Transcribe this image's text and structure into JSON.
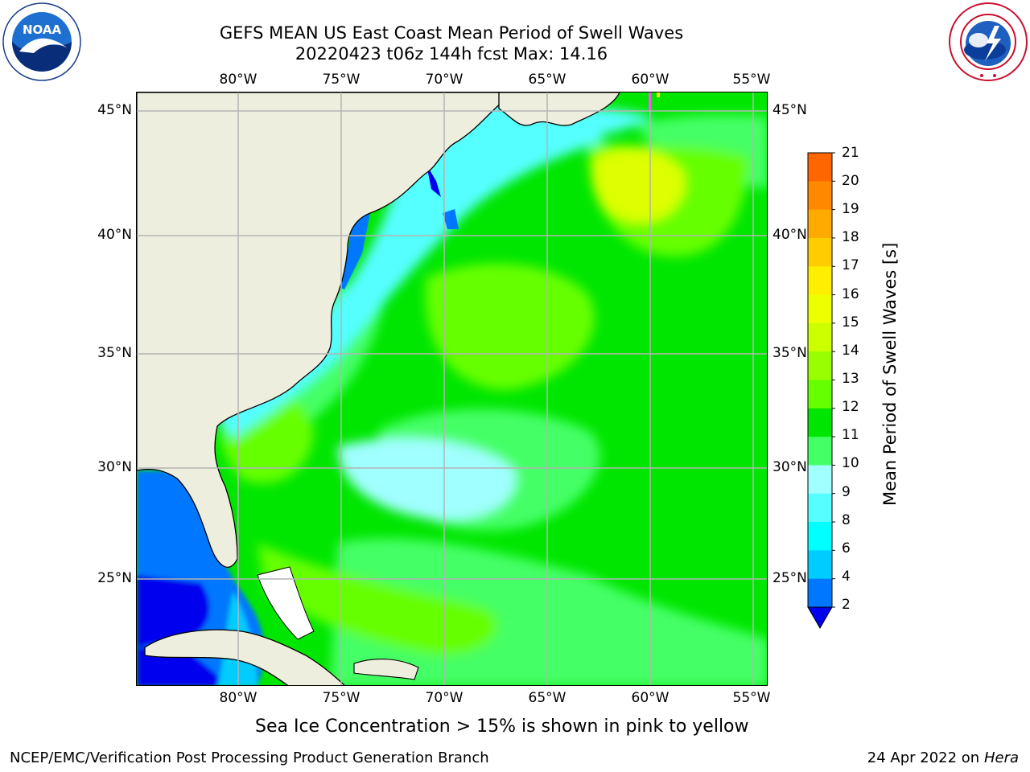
{
  "header": {
    "title_line1": "GEFS MEAN US East Coast Mean Period of Swell Waves",
    "title_line2": "20220423 t06z 144h fcst   Max: 14.16"
  },
  "logos": {
    "left": {
      "text": "NOAA",
      "ring_text": "NATIONAL OCEANIC AND ATMOSPHERIC ADMINISTRATION · U.S. DEPARTMENT OF COMMERCE"
    },
    "right": {
      "ring_text": "NATIONAL WEATHER SERVICE"
    }
  },
  "map": {
    "lon_labels": [
      "80°W",
      "75°W",
      "70°W",
      "65°W",
      "60°W",
      "55°W"
    ],
    "lat_labels": [
      "45°N",
      "40°N",
      "35°N",
      "30°N",
      "25°N"
    ],
    "colors": {
      "land": "#eeeede",
      "coast": "#000000",
      "grid": "#b4b4b4"
    }
  },
  "colorbar": {
    "label": "Mean Period of Swell Waves [s]",
    "ticks": [
      "21",
      "20",
      "19",
      "18",
      "17",
      "16",
      "15",
      "14",
      "13",
      "12",
      "11",
      "10",
      "9",
      "8",
      "6",
      "4",
      "2"
    ],
    "colors": [
      "#ff0000",
      "#ff2000",
      "#ff4400",
      "#ff6600",
      "#ff8800",
      "#ffaa00",
      "#ffcc00",
      "#ffee00",
      "#eeff00",
      "#ccff00",
      "#99ff00",
      "#66ff00",
      "#00e600",
      "#44ff66",
      "#a0ffff",
      "#55ffff",
      "#00ffff",
      "#00ccff",
      "#0077ff"
    ],
    "under_color": "#0000ee"
  },
  "notes": {
    "sea_ice": "Sea Ice Concentration > 15% is shown in pink to yellow"
  },
  "footer": {
    "left": "NCEP/EMC/Verification Post Processing Product Generation Branch",
    "right_prefix": "24 Apr 2022 on ",
    "right_host": "Hera"
  }
}
